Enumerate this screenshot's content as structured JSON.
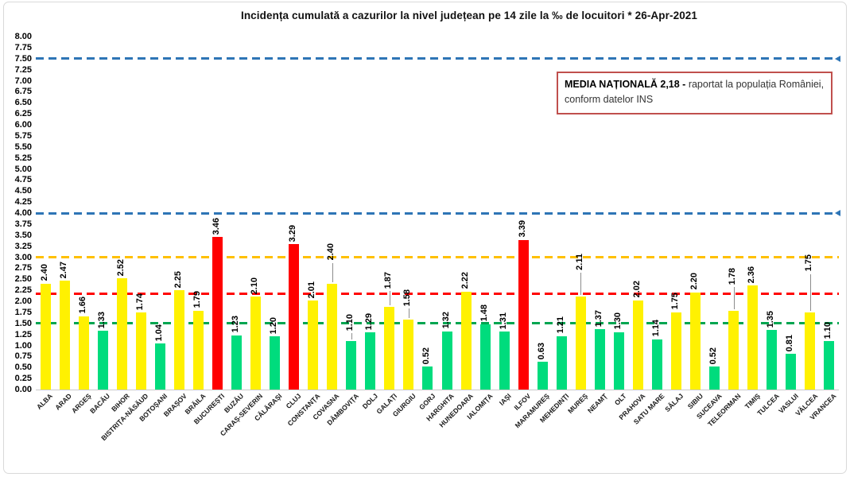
{
  "title": "Incidența cumulată a cazurilor la nivel județean pe 14 zile la ‰ de locuitori *   26-Apr-2021",
  "national_average_box": {
    "bold_text": "MEDIA NAȚIONALĂ  2,18 - ",
    "text_after_bold": "raportat la populația României,",
    "second_line": "conform datelor INS",
    "value": "2,18",
    "border_color": "#C0504D"
  },
  "chart_data": {
    "type": "bar",
    "title": "Incidența cumulată a cazurilor la nivel județean pe 14 zile la ‰ de locuitori *   26-Apr-2021",
    "xlabel": "",
    "ylabel": "",
    "ylim": [
      0,
      8
    ],
    "ytick_step": 0.25,
    "grid": false,
    "legend": "none",
    "yticks": [
      "8.00",
      "7.75",
      "7.50",
      "7.25",
      "7.00",
      "6.75",
      "6.50",
      "6.25",
      "6.00",
      "5.75",
      "5.50",
      "5.25",
      "5.00",
      "4.75",
      "4.50",
      "4.25",
      "4.00",
      "3.75",
      "3.50",
      "3.25",
      "3.00",
      "2.75",
      "2.50",
      "2.25",
      "2.00",
      "1.75",
      "1.50",
      "1.25",
      "1.00",
      "0.75",
      "0.50",
      "0.25",
      "0.00"
    ],
    "categories": [
      "ALBA",
      "ARAD",
      "ARGEȘ",
      "BACĂU",
      "BIHOR",
      "BISTRIȚA-NĂSĂUD",
      "BOTOȘANI",
      "BRAȘOV",
      "BRĂILA",
      "BUCUREȘTI",
      "BUZĂU",
      "CARAȘ-SEVERIN",
      "CĂLĂRAȘI",
      "CLUJ",
      "CONSTANȚA",
      "COVASNA",
      "DÂMBOVIȚA",
      "DOLJ",
      "GALAȚI",
      "GIURGIU",
      "GORJ",
      "HARGHITA",
      "HUNEDOARA",
      "IALOMIȚA",
      "IAȘI",
      "ILFOV",
      "MARAMUREȘ",
      "MEHEDINȚI",
      "MUREȘ",
      "NEAMȚ",
      "OLT",
      "PRAHOVA",
      "SATU MARE",
      "SĂLAJ",
      "SIBIU",
      "SUCEAVA",
      "TELEORMAN",
      "TIMIȘ",
      "TULCEA",
      "VASLUI",
      "VÂLCEA",
      "VRANCEA"
    ],
    "values": [
      2.4,
      2.47,
      1.66,
      1.33,
      2.52,
      1.74,
      1.04,
      2.25,
      1.79,
      3.46,
      1.23,
      2.1,
      1.2,
      3.29,
      2.01,
      2.4,
      1.1,
      1.29,
      1.87,
      1.58,
      0.52,
      1.32,
      2.22,
      1.48,
      1.31,
      3.39,
      0.63,
      1.21,
      2.11,
      1.37,
      1.3,
      2.02,
      1.14,
      1.75,
      2.2,
      0.52,
      1.78,
      2.36,
      1.35,
      0.81,
      1.75,
      1.1
    ],
    "bar_levels": [
      "yellow",
      "yellow",
      "yellow",
      "green",
      "yellow",
      "yellow",
      "green",
      "yellow",
      "yellow",
      "red",
      "green",
      "yellow",
      "green",
      "red",
      "yellow",
      "yellow",
      "green",
      "green",
      "yellow",
      "yellow",
      "green",
      "green",
      "yellow",
      "green",
      "green",
      "red",
      "green",
      "green",
      "yellow",
      "green",
      "green",
      "yellow",
      "green",
      "yellow",
      "yellow",
      "green",
      "yellow",
      "yellow",
      "green",
      "green",
      "yellow",
      "green"
    ],
    "palette": {
      "yellow": "#FFF101",
      "green": "#00DC7D",
      "red": "#FF0000"
    },
    "color_rule": "green < 1.5 ≤ yellow < 3.0 ≤ red",
    "reference_lines": [
      {
        "value": 7.5,
        "color": "#2E75B6",
        "style": "dashed",
        "arrow_end": true
      },
      {
        "value": 4.0,
        "color": "#2E75B6",
        "style": "dashed",
        "arrow_end": true
      },
      {
        "value": 3.0,
        "color": "#FFC000",
        "style": "dashed",
        "arrow_end": false
      },
      {
        "value": 2.18,
        "color": "#FF0000",
        "style": "dashed",
        "arrow_end": false,
        "meaning": "media națională"
      },
      {
        "value": 1.5,
        "color": "#00A550",
        "style": "dashed",
        "arrow_end": false
      }
    ]
  }
}
